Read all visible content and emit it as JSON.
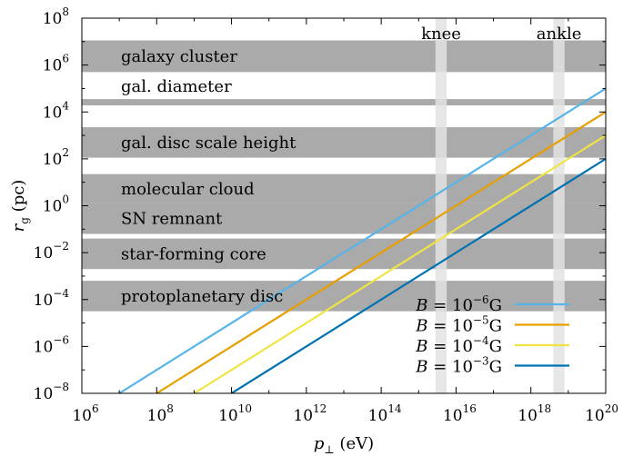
{
  "chart_data": {
    "type": "line",
    "title": "",
    "xlabel": "p⊥ (eV)",
    "ylabel": "r_g (pc)",
    "xscale": "log",
    "yscale": "log",
    "xlim_exp": [
      6,
      20
    ],
    "ylim_exp": [
      -8,
      8
    ],
    "x_ticks": [
      {
        "base": "10",
        "exp": "6",
        "value_exp": 6
      },
      {
        "base": "10",
        "exp": "8",
        "value_exp": 8
      },
      {
        "base": "10",
        "exp": "10",
        "value_exp": 10
      },
      {
        "base": "10",
        "exp": "12",
        "value_exp": 12
      },
      {
        "base": "10",
        "exp": "14",
        "value_exp": 14
      },
      {
        "base": "10",
        "exp": "16",
        "value_exp": 16
      },
      {
        "base": "10",
        "exp": "18",
        "value_exp": 18
      },
      {
        "base": "10",
        "exp": "20",
        "value_exp": 20
      }
    ],
    "y_ticks": [
      {
        "base": "10",
        "exp": "−8",
        "value_exp": -8
      },
      {
        "base": "10",
        "exp": "−6",
        "value_exp": -6
      },
      {
        "base": "10",
        "exp": "−4",
        "value_exp": -4
      },
      {
        "base": "10",
        "exp": "−2",
        "value_exp": -2
      },
      {
        "base": "10",
        "exp": "0",
        "value_exp": 0
      },
      {
        "base": "10",
        "exp": "2",
        "value_exp": 2
      },
      {
        "base": "10",
        "exp": "4",
        "value_exp": 4
      },
      {
        "base": "10",
        "exp": "6",
        "value_exp": 6
      },
      {
        "base": "10",
        "exp": "8",
        "value_exp": 8
      }
    ],
    "bands": [
      {
        "label": "galaxy cluster",
        "y_exp": [
          5.7,
          7.05
        ]
      },
      {
        "label": "gal. diameter",
        "y_exp": [
          4.28,
          4.55
        ]
      },
      {
        "label": "gal. disc scale height",
        "y_exp": [
          2.05,
          3.35
        ]
      },
      {
        "label": "molecular cloud",
        "y_exp": [
          0.1,
          1.35
        ]
      },
      {
        "label": "SN remnant",
        "y_exp": [
          -1.2,
          0.1
        ]
      },
      {
        "label": "star-forming core",
        "y_exp": [
          -2.7,
          -1.4
        ]
      },
      {
        "label": "protoplanetary disc",
        "y_exp": [
          -4.5,
          -3.2
        ]
      }
    ],
    "vertical_bands": [
      {
        "label": "knee",
        "x_exp": [
          15.45,
          15.75
        ]
      },
      {
        "label": "ankle",
        "x_exp": [
          18.6,
          18.9
        ]
      }
    ],
    "series": [
      {
        "label_base": "B = 10",
        "label_exp": "−6",
        "label_unit": "G",
        "color": "#56b4e9",
        "x_exp": [
          7,
          20
        ],
        "y_exp": [
          -8,
          5
        ]
      },
      {
        "label_base": "B = 10",
        "label_exp": "−5",
        "label_unit": "G",
        "color": "#e69f00",
        "x_exp": [
          8,
          20
        ],
        "y_exp": [
          -8,
          4
        ]
      },
      {
        "label_base": "B = 10",
        "label_exp": "−4",
        "label_unit": "G",
        "color": "#f0e442",
        "x_exp": [
          9,
          20
        ],
        "y_exp": [
          -8,
          3
        ]
      },
      {
        "label_base": "B = 10",
        "label_exp": "−3",
        "label_unit": "G",
        "color": "#0072b2",
        "x_exp": [
          10,
          20
        ],
        "y_exp": [
          -8,
          2
        ]
      }
    ],
    "band_color": "#aaaaaa",
    "vertical_band_color": "#e3e3e3",
    "legend_position": "bottom-right",
    "grid": false
  }
}
